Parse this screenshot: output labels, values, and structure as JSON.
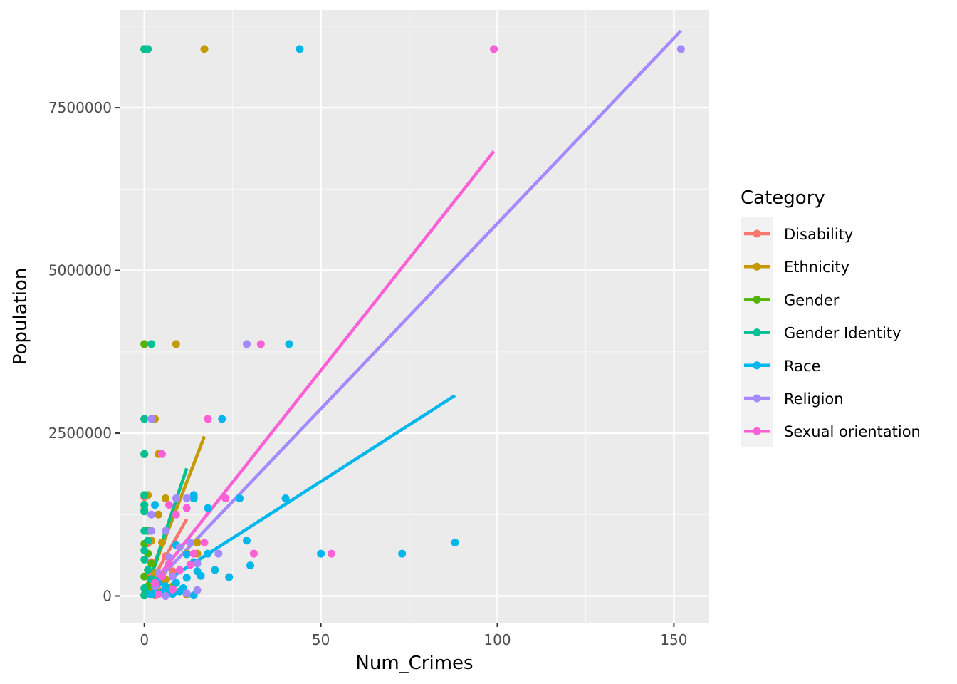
{
  "chart_data": {
    "type": "scatter",
    "xlabel": "Num_Crimes",
    "ylabel": "Population",
    "xlim": [
      -7,
      160
    ],
    "ylim": [
      -410000,
      9000000
    ],
    "x_ticks": [
      0,
      50,
      100,
      150
    ],
    "y_ticks": [
      0,
      2500000,
      5000000,
      7500000
    ],
    "x_tick_labels": [
      "0",
      "50",
      "100",
      "150"
    ],
    "y_tick_labels": [
      "0",
      "2500000",
      "5000000",
      "7500000"
    ],
    "grid": true,
    "legend": {
      "title": "Category",
      "placement": "right"
    },
    "series": [
      {
        "name": "Disability",
        "color": "#F8766D",
        "points": [
          [
            0,
            8400000
          ],
          [
            0,
            3870000
          ],
          [
            0,
            2720000
          ],
          [
            0,
            2180000
          ],
          [
            0,
            1520000
          ],
          [
            0,
            1330000
          ],
          [
            1,
            810000
          ],
          [
            2,
            520000
          ],
          [
            2,
            320000
          ],
          [
            3,
            180000
          ],
          [
            4,
            90000
          ],
          [
            5,
            320000
          ],
          [
            6,
            610000
          ],
          [
            1,
            60000
          ],
          [
            0,
            20000
          ],
          [
            8,
            380000
          ],
          [
            3,
            10000
          ]
        ],
        "fit": [
          [
            0,
            30000
          ],
          [
            12,
            1180000
          ]
        ]
      },
      {
        "name": "Ethnicity",
        "color": "#C49A00",
        "points": [
          [
            0,
            8400000
          ],
          [
            17,
            8400000
          ],
          [
            9,
            3870000
          ],
          [
            3,
            2720000
          ],
          [
            4,
            2180000
          ],
          [
            1,
            1550000
          ],
          [
            6,
            1500000
          ],
          [
            14,
            1500000
          ],
          [
            4,
            1250000
          ],
          [
            2,
            850000
          ],
          [
            5,
            820000
          ],
          [
            15,
            820000
          ],
          [
            12,
            650000
          ],
          [
            15,
            650000
          ],
          [
            1,
            400000
          ],
          [
            3,
            350000
          ],
          [
            6,
            250000
          ],
          [
            8,
            150000
          ],
          [
            12,
            20000
          ],
          [
            2,
            50000
          ],
          [
            0,
            10000
          ]
        ],
        "fit": [
          [
            0,
            60000
          ],
          [
            17,
            2450000
          ]
        ]
      },
      {
        "name": "Gender",
        "color": "#53B400",
        "points": [
          [
            0,
            8400000
          ],
          [
            0,
            3870000
          ],
          [
            0,
            2720000
          ],
          [
            0,
            2180000
          ],
          [
            0,
            1550000
          ],
          [
            0,
            1400000
          ],
          [
            1,
            1000000
          ],
          [
            0,
            800000
          ],
          [
            1,
            650000
          ],
          [
            2,
            500000
          ],
          [
            0,
            300000
          ],
          [
            1,
            150000
          ],
          [
            3,
            80000
          ],
          [
            0,
            10000
          ],
          [
            2,
            30000
          ]
        ],
        "fit": [
          [
            0,
            20000
          ],
          [
            4,
            620000
          ]
        ]
      },
      {
        "name": "Gender Identity",
        "color": "#00C094",
        "points": [
          [
            0,
            8400000
          ],
          [
            1,
            8400000
          ],
          [
            2,
            3870000
          ],
          [
            0,
            2720000
          ],
          [
            0,
            2180000
          ],
          [
            0,
            1550000
          ],
          [
            0,
            1400000
          ],
          [
            0,
            1300000
          ],
          [
            0,
            1000000
          ],
          [
            1,
            850000
          ],
          [
            0,
            700000
          ],
          [
            0,
            560000
          ],
          [
            1,
            400000
          ],
          [
            2,
            260000
          ],
          [
            0,
            120000
          ],
          [
            1,
            40000
          ],
          [
            0,
            10000
          ]
        ],
        "fit": [
          [
            0,
            20000
          ],
          [
            12,
            1960000
          ]
        ]
      },
      {
        "name": "Race",
        "color": "#00B6EB",
        "points": [
          [
            44,
            8400000
          ],
          [
            41,
            3870000
          ],
          [
            22,
            2720000
          ],
          [
            14,
            1550000
          ],
          [
            14,
            1500000
          ],
          [
            27,
            1500000
          ],
          [
            40,
            1500000
          ],
          [
            3,
            1400000
          ],
          [
            18,
            1350000
          ],
          [
            29,
            850000
          ],
          [
            88,
            820000
          ],
          [
            9,
            780000
          ],
          [
            50,
            650000
          ],
          [
            73,
            650000
          ],
          [
            18,
            650000
          ],
          [
            12,
            640000
          ],
          [
            14,
            520000
          ],
          [
            30,
            470000
          ],
          [
            20,
            400000
          ],
          [
            15,
            380000
          ],
          [
            16,
            310000
          ],
          [
            24,
            290000
          ],
          [
            12,
            280000
          ],
          [
            9,
            200000
          ],
          [
            11,
            120000
          ],
          [
            7,
            100000
          ],
          [
            5,
            60000
          ],
          [
            14,
            10000
          ],
          [
            8,
            30000
          ],
          [
            2,
            20000
          ],
          [
            10,
            70000
          ],
          [
            6,
            150000
          ],
          [
            4,
            240000
          ],
          [
            3,
            50000
          ]
        ],
        "fit": [
          [
            0,
            20000
          ],
          [
            88,
            3080000
          ]
        ]
      },
      {
        "name": "Religion",
        "color": "#A58AFF",
        "points": [
          [
            152,
            8400000
          ],
          [
            29,
            3870000
          ],
          [
            2,
            2720000
          ],
          [
            2,
            1250000
          ],
          [
            9,
            1500000
          ],
          [
            12,
            1500000
          ],
          [
            2,
            1000000
          ],
          [
            6,
            1000000
          ],
          [
            13,
            820000
          ],
          [
            10,
            750000
          ],
          [
            21,
            650000
          ],
          [
            7,
            600000
          ],
          [
            15,
            500000
          ],
          [
            4,
            350000
          ],
          [
            8,
            300000
          ],
          [
            6,
            0
          ],
          [
            12,
            40000
          ],
          [
            15,
            90000
          ],
          [
            3,
            150000
          ]
        ],
        "fit": [
          [
            0,
            30000
          ],
          [
            152,
            8680000
          ]
        ]
      },
      {
        "name": "Sexual orientation",
        "color": "#FB61D7",
        "points": [
          [
            99,
            8400000
          ],
          [
            33,
            3870000
          ],
          [
            18,
            2720000
          ],
          [
            5,
            2180000
          ],
          [
            23,
            1500000
          ],
          [
            12,
            1350000
          ],
          [
            7,
            1400000
          ],
          [
            9,
            1250000
          ],
          [
            17,
            820000
          ],
          [
            53,
            650000
          ],
          [
            31,
            650000
          ],
          [
            14,
            650000
          ],
          [
            13,
            480000
          ],
          [
            7,
            500000
          ],
          [
            10,
            400000
          ],
          [
            5,
            300000
          ],
          [
            3,
            200000
          ],
          [
            8,
            100000
          ],
          [
            4,
            30000
          ]
        ],
        "fit": [
          [
            0,
            30000
          ],
          [
            99,
            6830000
          ]
        ]
      }
    ]
  }
}
